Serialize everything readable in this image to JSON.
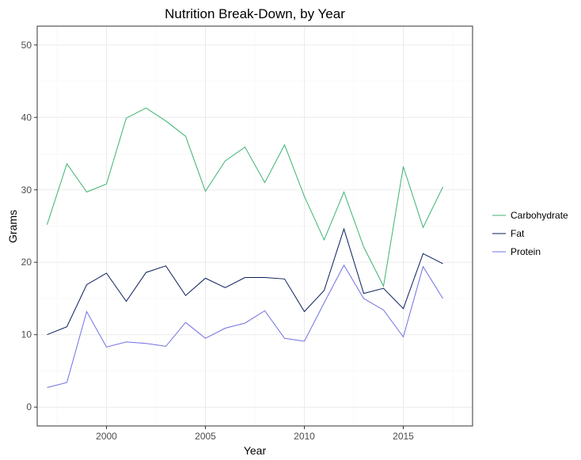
{
  "chart_data": {
    "type": "line",
    "title": "Nutrition Break-Down, by Year",
    "xlabel": "Year",
    "ylabel": "Grams",
    "x": [
      1997,
      1998,
      1999,
      2000,
      2001,
      2002,
      2003,
      2004,
      2005,
      2006,
      2007,
      2008,
      2009,
      2010,
      2011,
      2012,
      2013,
      2014,
      2015,
      2016,
      2017
    ],
    "xlim": [
      1996.5,
      2018.5
    ],
    "ylim": [
      -2.6,
      52.6
    ],
    "x_ticks": [
      2000,
      2005,
      2010,
      2015
    ],
    "y_ticks": [
      0,
      10,
      20,
      30,
      40,
      50
    ],
    "grid": true,
    "legend_position": "right",
    "series": [
      {
        "name": "Carbohydrate",
        "color": "#3cb371",
        "values": [
          25.2,
          33.6,
          29.7,
          30.8,
          39.9,
          41.3,
          39.5,
          37.4,
          29.8,
          34.0,
          35.9,
          31.0,
          36.2,
          29.1,
          23.1,
          29.7,
          22.1,
          16.7,
          33.2,
          24.8,
          30.4
        ]
      },
      {
        "name": "Fat",
        "color": "#0a1f5c",
        "values": [
          10.0,
          11.1,
          16.9,
          18.5,
          14.6,
          18.6,
          19.5,
          15.4,
          17.8,
          16.5,
          17.9,
          17.9,
          17.7,
          13.2,
          16.1,
          24.6,
          15.7,
          16.4,
          13.6,
          21.2,
          19.8
        ]
      },
      {
        "name": "Protein",
        "color": "#6f6fe3",
        "values": [
          2.7,
          3.4,
          13.2,
          8.3,
          9.0,
          8.8,
          8.4,
          11.7,
          9.5,
          10.9,
          11.6,
          13.3,
          9.5,
          9.1,
          14.4,
          19.6,
          15.0,
          13.4,
          9.7,
          19.4,
          15.0
        ]
      }
    ]
  }
}
